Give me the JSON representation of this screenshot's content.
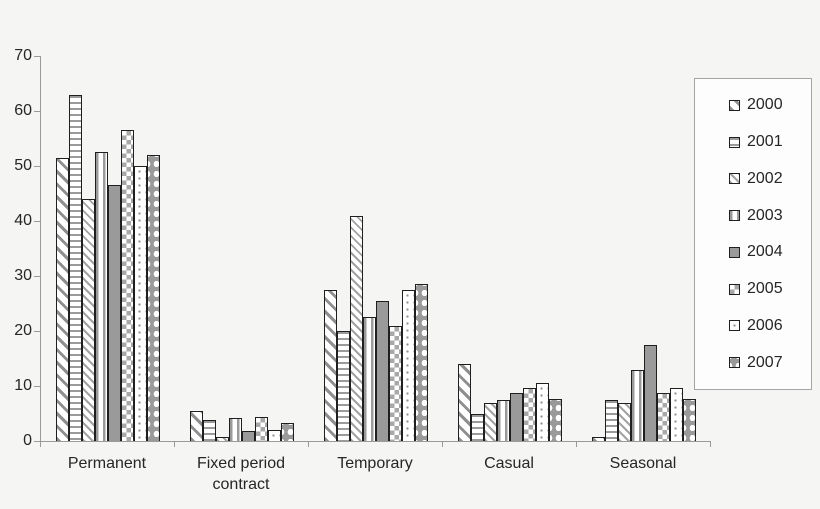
{
  "chart_data": {
    "type": "bar",
    "title": "",
    "xlabel": "",
    "ylabel": "",
    "categories": [
      "Permanent",
      "Fixed period contract",
      "Temporary",
      "Casual",
      "Seasonal"
    ],
    "series": [
      {
        "name": "2000",
        "pattern": "diagonal-wide",
        "values": [
          51.5,
          5.5,
          27.5,
          14.0,
          0.8
        ]
      },
      {
        "name": "2001",
        "pattern": "horizontal-stripes",
        "values": [
          63.0,
          3.8,
          20.0,
          5.0,
          7.5
        ]
      },
      {
        "name": "2002",
        "pattern": "diagonal-thin",
        "values": [
          44.0,
          0.8,
          41.0,
          7.0,
          7.0
        ]
      },
      {
        "name": "2003",
        "pattern": "vertical-stripes",
        "values": [
          52.5,
          4.2,
          22.5,
          7.5,
          13.0
        ]
      },
      {
        "name": "2004",
        "pattern": "solid-gray",
        "values": [
          46.5,
          1.8,
          25.5,
          8.8,
          17.5
        ]
      },
      {
        "name": "2005",
        "pattern": "checkerboard",
        "values": [
          56.5,
          4.4,
          21.0,
          9.7,
          8.8
        ]
      },
      {
        "name": "2006",
        "pattern": "dots-light",
        "values": [
          50.0,
          2.0,
          27.5,
          10.5,
          9.7
        ]
      },
      {
        "name": "2007",
        "pattern": "diamonds-gray",
        "values": [
          52.0,
          3.3,
          28.5,
          7.7,
          7.7
        ]
      }
    ],
    "ylim": [
      0,
      70
    ],
    "yticks": [
      0,
      10,
      20,
      30,
      40,
      50,
      60,
      70
    ],
    "grid": false,
    "legend_position": "right",
    "legend_entries": [
      "2000",
      "2001",
      "2002",
      "2003",
      "2004",
      "2005",
      "2006",
      "2007"
    ]
  },
  "colors": {
    "background": "#f5f5f4",
    "axis": "#9a9a9a",
    "bar_outline": "#1f1f1f",
    "bar_gray": "#9a9a9a",
    "text": "#262626",
    "legend_background": "#fdfdfd",
    "legend_border": "#a5a5a5"
  }
}
